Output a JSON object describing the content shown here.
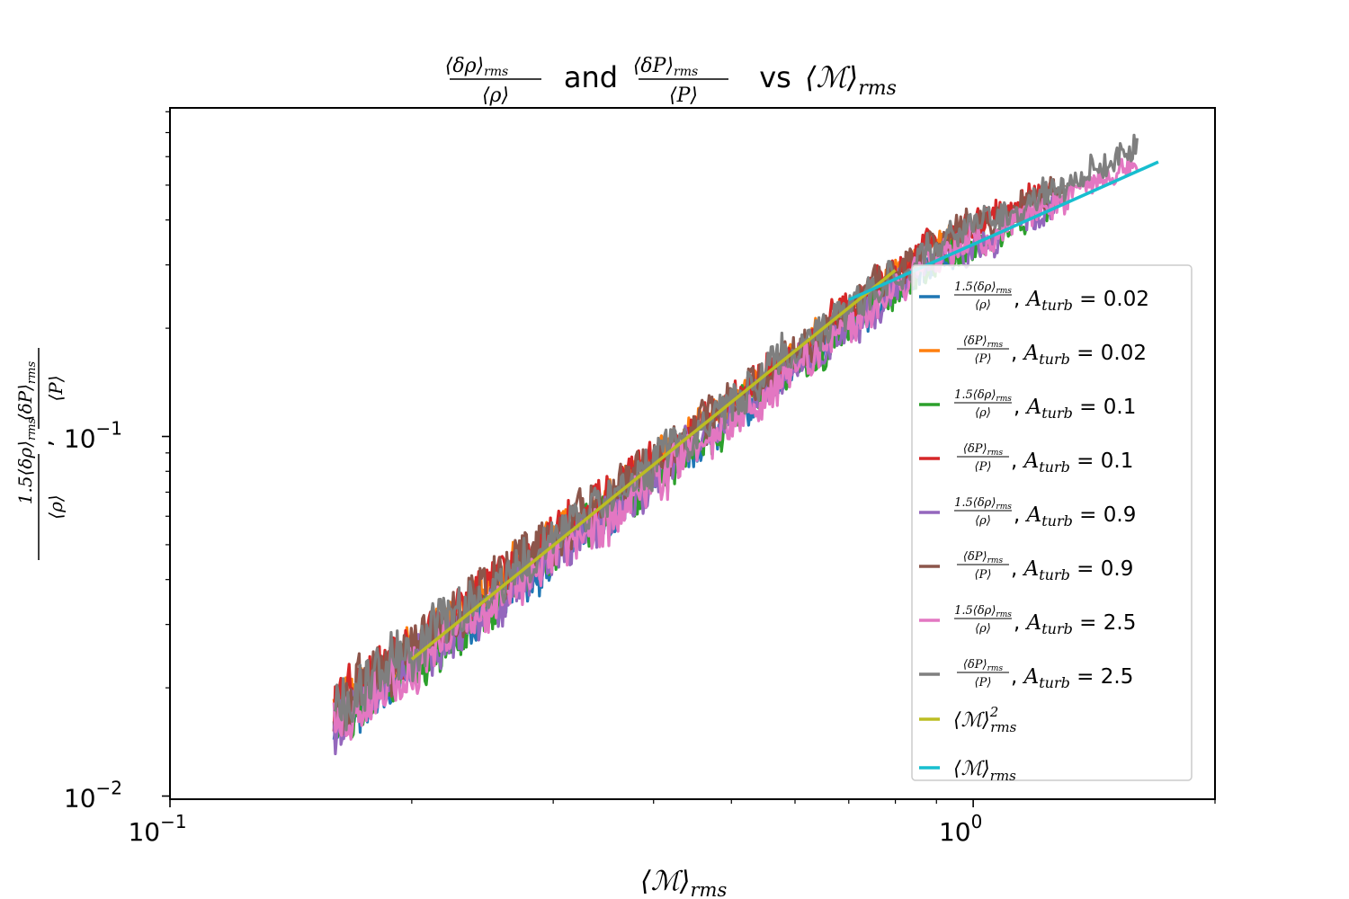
{
  "chart_data": {
    "type": "line",
    "title": {
      "rho_num": "⟨δρ⟩",
      "rho_num_sub": "rms",
      "rho_den": "⟨ρ⟩",
      "and": "and",
      "p_num": "⟨δP⟩",
      "p_num_sub": "rms",
      "p_den": "⟨P⟩",
      "vs": "vs",
      "mach": "⟨ℳ⟩",
      "mach_sub": "rms"
    },
    "xlabel": {
      "main": "⟨ℳ⟩",
      "sub": "rms"
    },
    "ylabel": {
      "a_num": "1.5⟨δρ⟩",
      "a_num_sub": "rms",
      "a_den": "⟨ρ⟩",
      "sep": ",",
      "b_num": "⟨δP⟩",
      "b_num_sub": "rms",
      "b_den": "⟨P⟩"
    },
    "x_scale": "log",
    "y_scale": "log",
    "xlim": [
      0.1,
      2.0
    ],
    "ylim": [
      0.0098,
      0.82
    ],
    "x_ticks": [
      {
        "value": 0.1,
        "base": "10",
        "exp": "−1"
      },
      {
        "value": 1.0,
        "base": "10",
        "exp": "0"
      }
    ],
    "y_ticks": [
      {
        "value": 0.01,
        "base": "10",
        "exp": "−2"
      },
      {
        "value": 0.1,
        "base": "10",
        "exp": "−1"
      }
    ],
    "legend_position": "right",
    "series": [
      {
        "name": "0.02",
        "kind": "rho",
        "color": "#1f77b4",
        "x_start": 0.16,
        "x_end": 0.95,
        "amp": 0.14
      },
      {
        "name": "0.02",
        "kind": "p",
        "color": "#ff7f0e",
        "x_start": 0.16,
        "x_end": 0.95,
        "amp": 0.14
      },
      {
        "name": "0.1",
        "kind": "rho",
        "color": "#2ca02c",
        "x_start": 0.16,
        "x_end": 1.25,
        "amp": 0.16
      },
      {
        "name": "0.1",
        "kind": "p",
        "color": "#d62728",
        "x_start": 0.16,
        "x_end": 1.25,
        "amp": 0.17
      },
      {
        "name": "0.9",
        "kind": "rho",
        "color": "#9467bd",
        "x_start": 0.16,
        "x_end": 1.3,
        "amp": 0.16
      },
      {
        "name": "0.9",
        "kind": "p",
        "color": "#8c564b",
        "x_start": 0.16,
        "x_end": 1.3,
        "amp": 0.18
      },
      {
        "name": "2.5",
        "kind": "rho",
        "color": "#e377c2",
        "x_start": 0.16,
        "x_end": 1.6,
        "amp": 0.16
      },
      {
        "name": "2.5",
        "kind": "p",
        "color": "#7f7f7f",
        "x_start": 0.16,
        "x_end": 1.6,
        "amp": 0.17
      }
    ],
    "legend": {
      "a_prefix": "A",
      "a_sub": "turb",
      "eq": "=",
      "rho_num": "1.5⟨δρ⟩",
      "rho_num_sub": "rms",
      "rho_den": "⟨ρ⟩",
      "p_num": "⟨δP⟩",
      "p_num_sub": "rms",
      "p_den": "⟨P⟩",
      "sep": ","
    },
    "fits": [
      {
        "name": "⟨ℳ⟩",
        "sub": "rms",
        "sup": "2",
        "color": "#bcbd22",
        "x": [
          0.2,
          0.8
        ],
        "y": [
          0.024,
          0.29
        ]
      },
      {
        "name": "⟨ℳ⟩",
        "sub": "rms",
        "sup": "",
        "color": "#17becf",
        "x": [
          0.7,
          1.7
        ],
        "y": [
          0.24,
          0.58
        ]
      }
    ]
  }
}
